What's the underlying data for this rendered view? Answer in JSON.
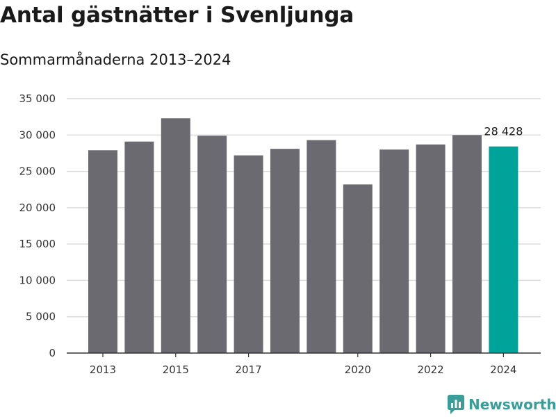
{
  "chart_data": {
    "type": "bar",
    "title": "Antal gästnätter i Svenljunga",
    "subtitle": "Sommarmånaderna 2013–2024",
    "categories": [
      2013,
      2014,
      2015,
      2016,
      2017,
      2018,
      2019,
      2020,
      2021,
      2022,
      2023,
      2024
    ],
    "values": [
      27900,
      29100,
      32300,
      29900,
      27200,
      28100,
      29300,
      23200,
      28000,
      28700,
      30000,
      28428
    ],
    "x_tick_labels": [
      "2013",
      "2015",
      "2017",
      "2020",
      "2022",
      "2024"
    ],
    "y_ticks": [
      0,
      5000,
      10000,
      15000,
      20000,
      25000,
      30000,
      35000
    ],
    "y_tick_labels": [
      "0",
      "5 000",
      "10 000",
      "15 000",
      "20 000",
      "25 000",
      "30 000",
      "35 000"
    ],
    "ylim": [
      0,
      35000
    ],
    "grid": true,
    "bar_color": "#6b6a70",
    "highlight_color": "#00a39a",
    "highlight_category": 2024,
    "data_labels": [
      {
        "category": 2024,
        "text": "28 428"
      }
    ],
    "xlabel": "",
    "ylabel": ""
  },
  "brand": {
    "name": "Newsworthy",
    "icon": "newsworthy-logo-icon",
    "color": "#3a9d98"
  }
}
